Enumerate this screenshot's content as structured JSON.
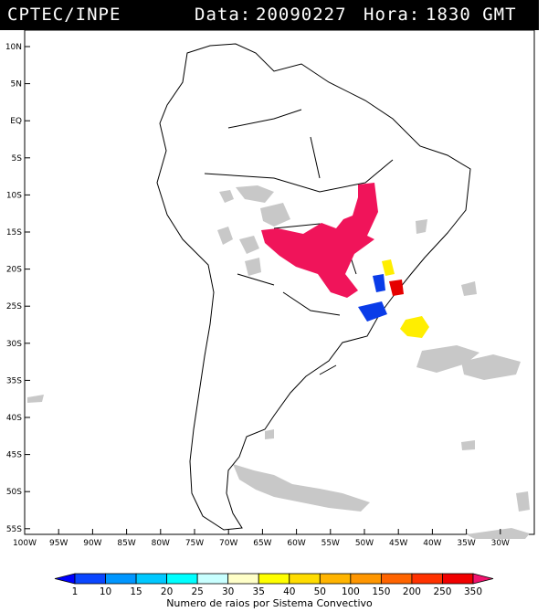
{
  "header": {
    "source": "CPTEC/INPE",
    "date_label": "Data:",
    "date_value": "20090227",
    "time_label": "Hora:",
    "time_value": "1830 GMT"
  },
  "map": {
    "lon_range": [
      -100,
      -25
    ],
    "lat_range": [
      -56,
      13
    ],
    "lat_ticks": [
      "10N",
      "5N",
      "EQ",
      "5S",
      "10S",
      "15S",
      "20S",
      "25S",
      "30S",
      "35S",
      "40S",
      "45S",
      "50S",
      "55S"
    ],
    "lon_ticks": [
      "100W",
      "95W",
      "90W",
      "85W",
      "80W",
      "75W",
      "70W",
      "65W",
      "60W",
      "55W",
      "50W",
      "45W",
      "40W",
      "35W",
      "30W"
    ],
    "colors": {
      "satellite_cloud": "#c8c8c8",
      "outline": "#000000",
      "lightning_high": "#f0145a",
      "lightning_low": "#0a3ce8",
      "lightning_mid": "#ffee00",
      "lightning_max": "#e60000"
    }
  },
  "colorbar": {
    "labels": [
      "1",
      "10",
      "15",
      "20",
      "25",
      "30",
      "35",
      "40",
      "50",
      "100",
      "150",
      "200",
      "250",
      "350"
    ],
    "colors": [
      "#0000ff",
      "#0a46ff",
      "#0096ff",
      "#00c8ff",
      "#00ffff",
      "#c8ffff",
      "#ffffc8",
      "#ffff00",
      "#ffdc00",
      "#ffb400",
      "#ff9600",
      "#ff6400",
      "#ff3200",
      "#f00000",
      "#f0146e"
    ],
    "title": "Numero de raios por Sistema Convectivo"
  }
}
